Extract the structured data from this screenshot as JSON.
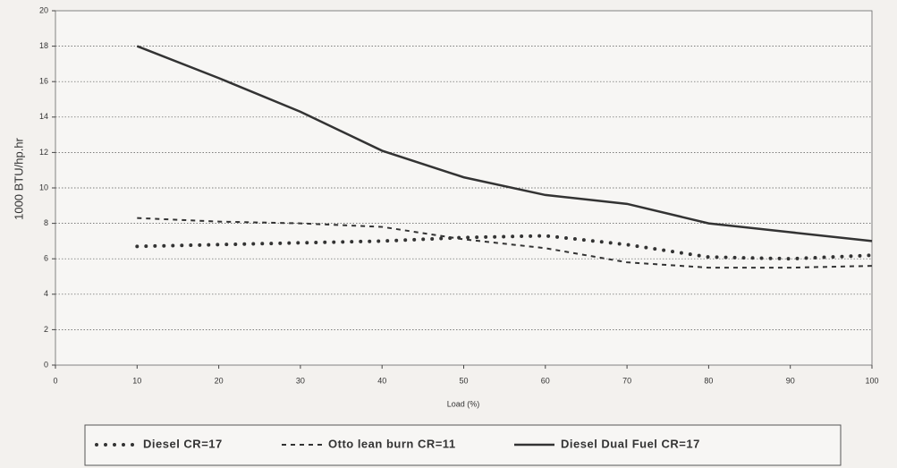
{
  "chart_data": {
    "type": "line",
    "x_label": "Load (%)",
    "y_label": "1000 BTU/hp.hr",
    "x": [
      10,
      20,
      30,
      40,
      50,
      60,
      70,
      80,
      90,
      100
    ],
    "series": [
      {
        "name": "Diesel CR=17",
        "color": "#333333",
        "style": "dotted",
        "values": [
          6.7,
          6.8,
          6.9,
          7.0,
          7.2,
          7.3,
          6.8,
          6.1,
          6.0,
          6.2
        ]
      },
      {
        "name": "Otto lean burn CR=11",
        "color": "#333333",
        "style": "dashed",
        "values": [
          8.3,
          8.1,
          8.0,
          7.8,
          7.1,
          6.6,
          5.8,
          5.5,
          5.5,
          5.6
        ]
      },
      {
        "name": "Diesel Dual Fuel CR=17",
        "color": "#333333",
        "style": "solid",
        "values": [
          18.0,
          16.2,
          14.3,
          12.1,
          10.6,
          9.6,
          9.1,
          8.0,
          7.5,
          7.0
        ]
      }
    ],
    "xlim": [
      0,
      100
    ],
    "xticks": [
      0,
      10,
      20,
      30,
      40,
      50,
      60,
      70,
      80,
      90,
      100
    ],
    "ylim": [
      0,
      20
    ],
    "yticks": [
      0,
      2,
      4,
      6,
      8,
      10,
      12,
      14,
      16,
      18,
      20
    ],
    "grid": true,
    "legend": "bottom"
  }
}
